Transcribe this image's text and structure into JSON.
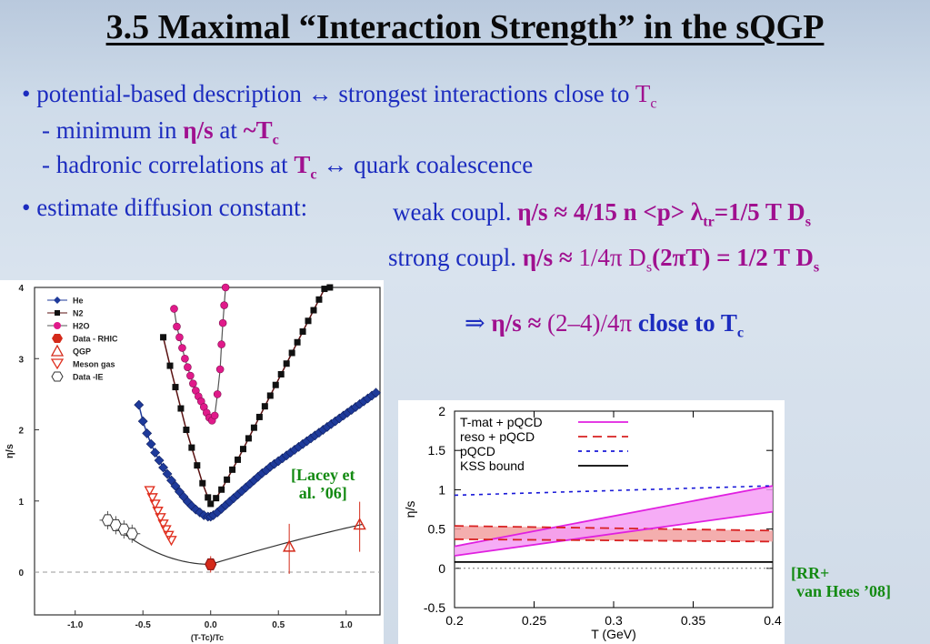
{
  "slide": {
    "title": "3.5 Maximal “Interaction Strength” in the sQGP",
    "bullet1": {
      "pre": "• potential-based description ↔ strongest interactions close to ",
      "tc": "T",
      "tc_sub": "c",
      "sub1_pre": "- minimum in ",
      "sub1_eta": "η/s",
      "sub1_mid": " at ",
      "sub1_tc": "~T",
      "sub1_tc_sub": "c",
      "sub2_pre": "- hadronic correlations at ",
      "sub2_tc": "T",
      "sub2_tc_sub": "c",
      "sub2_post": "  ↔  quark coalescence"
    },
    "bullet2": {
      "label": "• estimate diffusion constant:",
      "weak_pre": "weak coupl.  ",
      "weak_formula": "η/s ≈ 4/15 n <p> λ",
      "weak_sub": "tr",
      "weak_formula2": "=1/5 T D",
      "weak_sub2": "s",
      "strong_pre": "strong coupl. ",
      "strong_eta": "η/s ≈ ",
      "strong_formula": "1/4π D",
      "strong_sub": "s",
      "strong_formula2": "(2πT) = 1/2 T D",
      "strong_sub2": "s"
    },
    "conclusion": {
      "arrow": "⇒  ",
      "eta": "η/s ≈ ",
      "value": "(2–4)/4π ",
      "close": "close to T",
      "close_sub": "c"
    },
    "cite_left_1": "[Lacey et",
    "cite_left_2": "al. ’06]",
    "cite_right_1": "[RR+",
    "cite_right_2": "van Hees ’08]"
  },
  "chart_data": [
    {
      "type": "scatter",
      "xlabel": "(T-Tc)/Tc",
      "ylabel": "η/s",
      "xlim": [
        -1.3,
        1.25
      ],
      "ylim": [
        -0.6,
        4.0
      ],
      "xticks": [
        "-1.0",
        "-0.5",
        "0.0",
        "0.5",
        "1.0"
      ],
      "yticks": [
        "0",
        "1",
        "2",
        "3",
        "4"
      ],
      "legend": [
        "He",
        "N2",
        "H2O",
        "Data - RHIC",
        "QGP",
        "Meson gas",
        "Data -IE"
      ],
      "legend_placement": "top-left",
      "colors": {
        "He": "#1e3a9a",
        "N2": "#5a1212",
        "H2O": "#e01a8a",
        "Data - RHIC": "#d42a1a",
        "QGP": "#d42a1a",
        "Meson gas": "#e03020",
        "Data -IE": "#444444"
      },
      "series": [
        {
          "name": "He",
          "x": [
            -0.53,
            -0.5,
            -0.47,
            -0.44,
            -0.41,
            -0.38,
            -0.35,
            -0.32,
            -0.29,
            -0.26,
            -0.23,
            -0.2,
            -0.17,
            -0.14,
            -0.11,
            -0.08,
            -0.05,
            -0.02,
            0.0,
            0.02,
            0.05,
            0.08,
            0.11,
            0.14,
            0.17,
            0.2,
            0.23,
            0.26,
            0.29,
            0.32,
            0.35,
            0.38,
            0.41,
            0.44,
            0.47,
            0.5,
            0.53,
            0.56,
            0.59,
            0.62,
            0.65,
            0.68,
            0.71,
            0.74,
            0.77,
            0.8,
            0.83,
            0.86,
            0.89,
            0.92,
            0.95,
            0.98,
            1.01,
            1.04,
            1.07,
            1.1,
            1.13,
            1.16,
            1.19,
            1.22
          ],
          "y": [
            2.35,
            2.12,
            1.95,
            1.8,
            1.68,
            1.57,
            1.47,
            1.38,
            1.29,
            1.21,
            1.13,
            1.06,
            0.99,
            0.93,
            0.88,
            0.84,
            0.8,
            0.78,
            0.78,
            0.8,
            0.84,
            0.89,
            0.94,
            0.99,
            1.04,
            1.09,
            1.14,
            1.19,
            1.24,
            1.29,
            1.34,
            1.39,
            1.43,
            1.48,
            1.52,
            1.56,
            1.6,
            1.64,
            1.68,
            1.72,
            1.76,
            1.8,
            1.84,
            1.88,
            1.92,
            1.96,
            2.0,
            2.04,
            2.08,
            2.12,
            2.16,
            2.2,
            2.24,
            2.28,
            2.32,
            2.36,
            2.4,
            2.44,
            2.48,
            2.52
          ]
        },
        {
          "name": "N2",
          "x": [
            -0.35,
            -0.3,
            -0.26,
            -0.22,
            -0.18,
            -0.14,
            -0.1,
            -0.06,
            -0.02,
            0.0,
            0.04,
            0.08,
            0.12,
            0.16,
            0.2,
            0.24,
            0.28,
            0.32,
            0.36,
            0.4,
            0.44,
            0.48,
            0.52,
            0.56,
            0.6,
            0.64,
            0.68,
            0.72,
            0.76,
            0.8,
            0.84,
            0.88
          ],
          "y": [
            3.3,
            2.9,
            2.6,
            2.3,
            2.0,
            1.75,
            1.5,
            1.25,
            1.05,
            0.96,
            1.04,
            1.16,
            1.3,
            1.44,
            1.58,
            1.73,
            1.88,
            2.03,
            2.18,
            2.33,
            2.48,
            2.63,
            2.78,
            2.93,
            3.08,
            3.23,
            3.38,
            3.53,
            3.68,
            3.83,
            3.98,
            4.0
          ]
        },
        {
          "name": "H2O",
          "x": [
            -0.27,
            -0.25,
            -0.23,
            -0.21,
            -0.19,
            -0.17,
            -0.15,
            -0.13,
            -0.11,
            -0.09,
            -0.07,
            -0.05,
            -0.03,
            -0.01,
            0.01,
            0.03,
            0.05,
            0.07,
            0.08,
            0.09,
            0.1,
            0.11
          ],
          "y": [
            3.7,
            3.45,
            3.3,
            3.15,
            3.0,
            2.88,
            2.76,
            2.65,
            2.55,
            2.47,
            2.4,
            2.32,
            2.24,
            2.17,
            2.13,
            2.2,
            2.5,
            2.85,
            3.2,
            3.5,
            3.75,
            4.0
          ]
        },
        {
          "name": "Data - RHIC",
          "x": [
            0.0
          ],
          "y": [
            0.11
          ]
        },
        {
          "name": "QGP",
          "x": [
            0.58,
            1.1
          ],
          "y": [
            0.36,
            0.67
          ]
        },
        {
          "name": "Meson gas",
          "x": [
            -0.45,
            -0.43,
            -0.41,
            -0.39,
            -0.37,
            -0.35,
            -0.33,
            -0.31,
            -0.29
          ],
          "y": [
            1.15,
            1.05,
            0.96,
            0.86,
            0.77,
            0.68,
            0.6,
            0.52,
            0.45
          ]
        },
        {
          "name": "Data -IE",
          "x": [
            -0.76,
            -0.7,
            -0.64,
            -0.58
          ],
          "y": [
            0.73,
            0.66,
            0.6,
            0.54
          ]
        }
      ]
    },
    {
      "type": "line",
      "xlabel": "T (GeV)",
      "ylabel": "η/s",
      "xlim": [
        0.2,
        0.4
      ],
      "ylim": [
        -0.5,
        2
      ],
      "xticks": [
        "0.2",
        "0.25",
        "0.3",
        "0.35",
        "0.4"
      ],
      "yticks": [
        "-0.5",
        "0",
        "0.5",
        "1",
        "1.5",
        "2"
      ],
      "legend_placement": "top-left",
      "series": [
        {
          "name": "T-mat + pQCD",
          "color": "#e020e0",
          "x": [
            0.2,
            0.4
          ],
          "upper": [
            0.28,
            1.05
          ],
          "lower": [
            0.16,
            0.72
          ]
        },
        {
          "name": "reso + pQCD",
          "color": "#d82020",
          "x": [
            0.2,
            0.4
          ],
          "upper": [
            0.54,
            0.48
          ],
          "lower": [
            0.37,
            0.34
          ]
        },
        {
          "name": "pQCD",
          "color": "#1818d8",
          "x": [
            0.2,
            0.4
          ],
          "y": [
            0.93,
            1.05
          ]
        },
        {
          "name": "KSS bound",
          "color": "#000000",
          "x": [
            0.2,
            0.4
          ],
          "y": [
            0.08,
            0.08
          ]
        }
      ]
    }
  ]
}
